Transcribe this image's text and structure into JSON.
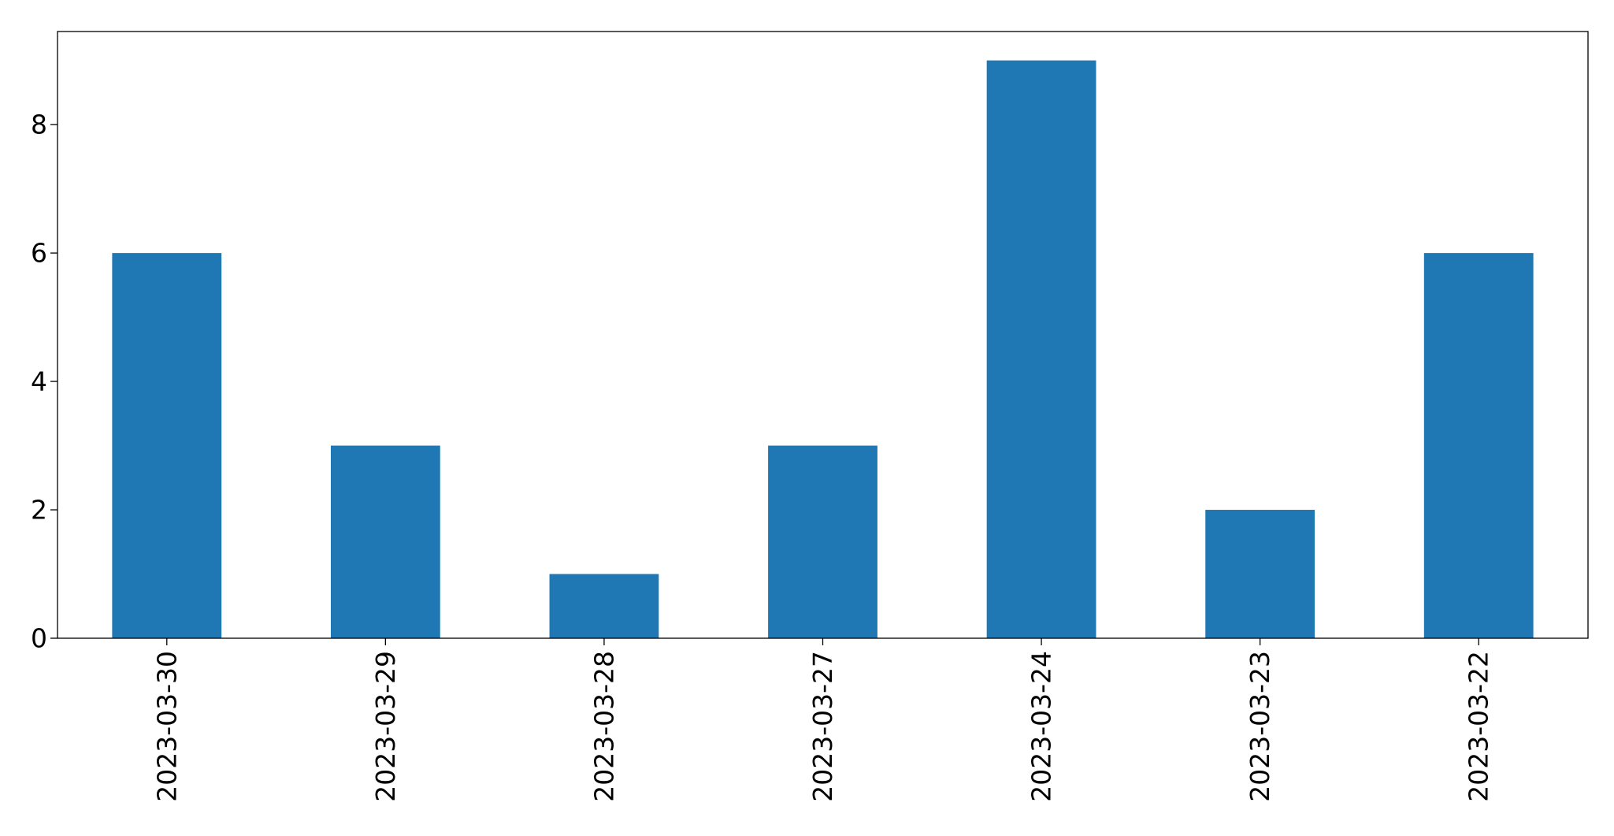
{
  "chart_data": {
    "type": "bar",
    "title": "",
    "xlabel": "",
    "ylabel": "",
    "categories": [
      "2023-03-30",
      "2023-03-29",
      "2023-03-28",
      "2023-03-27",
      "2023-03-24",
      "2023-03-23",
      "2023-03-22"
    ],
    "values": [
      6,
      3,
      1,
      3,
      9,
      2,
      6
    ],
    "ylim": [
      0,
      9.45
    ],
    "yticks": [
      0,
      2,
      4,
      6,
      8
    ],
    "grid": false,
    "legend": "none",
    "bar_color": "#1f77b4",
    "x_tick_rotation": "vertical"
  }
}
